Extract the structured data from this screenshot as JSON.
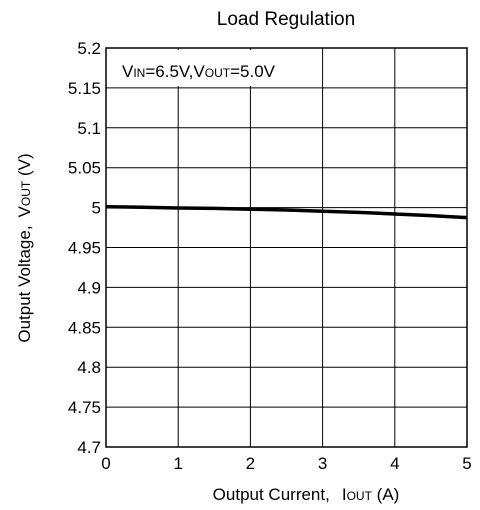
{
  "chart_data": {
    "type": "line",
    "title": "Load Regulation",
    "annotation": {
      "vin_main": "V",
      "vin_sub": "IN",
      "vin_value": "=6.5V,",
      "vout_main": "V",
      "vout_sub": "OUT",
      "vout_value": "=5.0V"
    },
    "xlabel": {
      "text": "Output Current",
      "comma": ",",
      "sym_main": "I",
      "sym_sub": "OUT",
      "unit": " (A)"
    },
    "ylabel": {
      "text": "Output Voltage,",
      "sym_main": "V",
      "sym_sub": "OUT",
      "unit": " (V)"
    },
    "xlim": [
      0,
      5
    ],
    "ylim": [
      4.7,
      5.2
    ],
    "x_ticks": [
      "0",
      "1",
      "2",
      "3",
      "4",
      "5"
    ],
    "y_ticks": [
      "5.2",
      "5.15",
      "5.1",
      "5.05",
      "5",
      "4.95",
      "4.9",
      "4.85",
      "4.8",
      "4.75",
      "4.7"
    ],
    "grid": true,
    "series": [
      {
        "x": [
          0,
          0.5,
          1,
          1.5,
          2,
          2.5,
          3,
          3.5,
          4,
          4.5,
          5
        ],
        "y": [
          5.001,
          5.0005,
          4.9995,
          4.999,
          4.998,
          4.997,
          4.9955,
          4.994,
          4.992,
          4.99,
          4.9875
        ]
      }
    ]
  }
}
